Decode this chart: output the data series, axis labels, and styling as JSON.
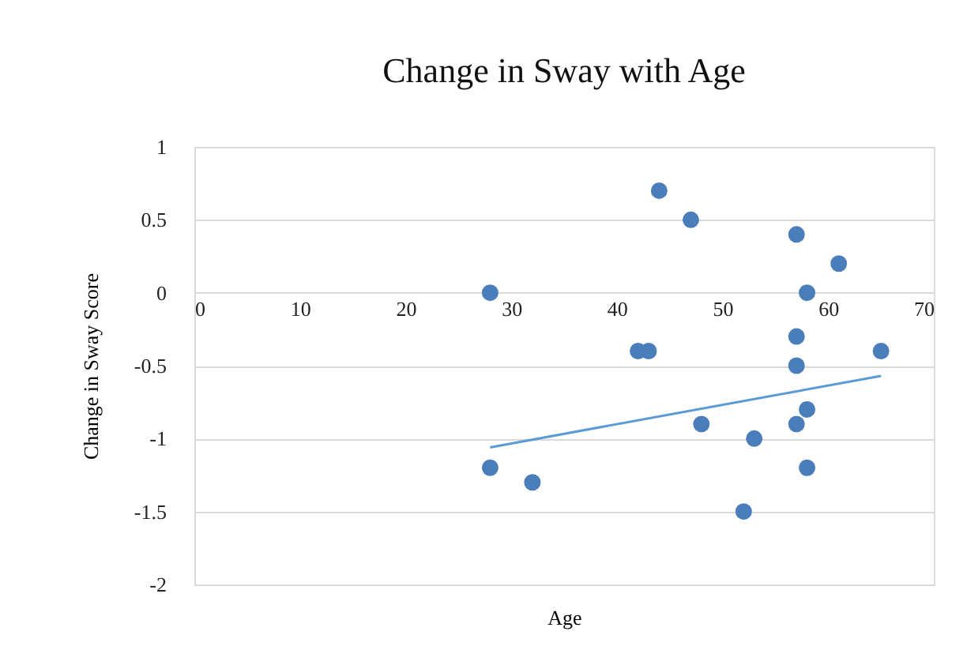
{
  "chart_data": {
    "type": "scatter",
    "title": "Change in Sway with Age",
    "xlabel": "Age",
    "ylabel": "Change in Sway Score",
    "xlim": [
      0,
      70
    ],
    "xticks": [
      0,
      10,
      20,
      30,
      40,
      50,
      60,
      70
    ],
    "ylim": [
      -2,
      1
    ],
    "yticks": [
      -2,
      -1.5,
      -1,
      -0.5,
      0,
      0.5,
      1
    ],
    "grid": "y",
    "marker": "circle",
    "series": [
      {
        "color": "#4a7ebb",
        "x": [
          28,
          28,
          32,
          42,
          43,
          44,
          47,
          48,
          52,
          53,
          57,
          57,
          57,
          57,
          58,
          58,
          58,
          61,
          65
        ],
        "values": [
          0,
          -1.2,
          -1.3,
          -0.4,
          -0.4,
          0.7,
          0.5,
          -0.9,
          -1.5,
          -1.0,
          0.4,
          -0.3,
          -0.5,
          -0.9,
          0,
          -0.8,
          -1.2,
          0.2,
          -0.4
        ]
      },
      {
        "type": "line",
        "marker": "none",
        "line_style": "solid",
        "color": "#5b9bd5",
        "x": [
          28,
          65
        ],
        "values": [
          -1.06,
          -0.57
        ]
      }
    ]
  }
}
